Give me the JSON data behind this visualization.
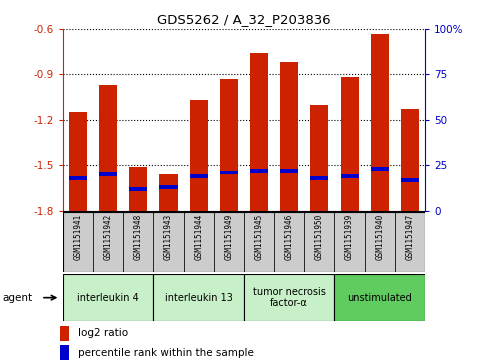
{
  "title": "GDS5262 / A_32_P203836",
  "samples": [
    "GSM1151941",
    "GSM1151942",
    "GSM1151948",
    "GSM1151943",
    "GSM1151944",
    "GSM1151949",
    "GSM1151945",
    "GSM1151946",
    "GSM1151950",
    "GSM1151939",
    "GSM1151940",
    "GSM1151947"
  ],
  "log2_ratio": [
    -1.15,
    -0.97,
    -1.51,
    -1.56,
    -1.07,
    -0.93,
    -0.76,
    -0.82,
    -1.1,
    -0.92,
    -0.63,
    -1.13
  ],
  "percentile_rank": [
    18,
    20,
    12,
    13,
    19,
    21,
    22,
    22,
    18,
    19,
    23,
    17
  ],
  "ylim_left": [
    -1.8,
    -0.6
  ],
  "ylim_right": [
    0,
    100
  ],
  "yticks_left": [
    -1.8,
    -1.5,
    -1.2,
    -0.9,
    -0.6
  ],
  "yticks_right": [
    0,
    25,
    50,
    75,
    100
  ],
  "ytick_labels_left": [
    "-1.8",
    "-1.5",
    "-1.2",
    "-0.9",
    "-0.6"
  ],
  "ytick_labels_right": [
    "0",
    "25",
    "50",
    "75",
    "100%"
  ],
  "groups": [
    {
      "label": "interleukin 4",
      "start": 0,
      "end": 3,
      "color": "#c8f0c8"
    },
    {
      "label": "interleukin 13",
      "start": 3,
      "end": 6,
      "color": "#c8f0c8"
    },
    {
      "label": "tumor necrosis\nfactor-α",
      "start": 6,
      "end": 9,
      "color": "#c8f0c8"
    },
    {
      "label": "unstimulated",
      "start": 9,
      "end": 12,
      "color": "#60cc60"
    }
  ],
  "bar_color": "#cc2200",
  "percentile_color": "#0000cc",
  "bg_color": "#ffffff",
  "plot_bg_color": "#ffffff",
  "tick_label_bg": "#cccccc",
  "grid_color": "#000000",
  "left_axis_color": "#cc2200",
  "right_axis_color": "#0000cc",
  "agent_label": "agent",
  "legend_log2": "log2 ratio",
  "legend_pct": "percentile rank within the sample",
  "bar_width": 0.6
}
